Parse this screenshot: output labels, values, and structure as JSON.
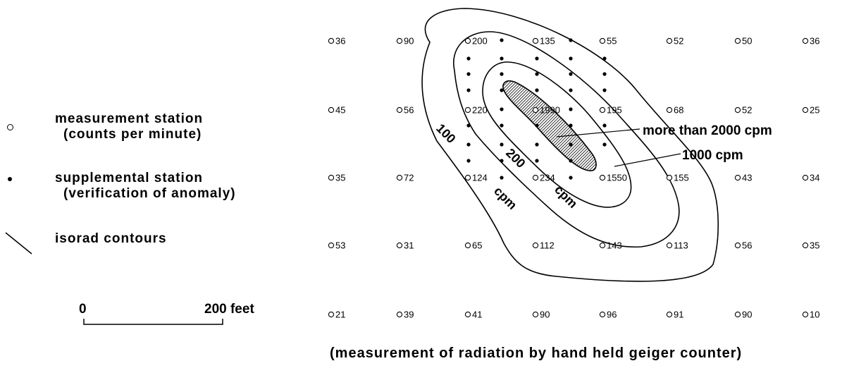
{
  "legend": {
    "measurement_station": "measurement station",
    "measurement_station_sub": "(counts per minute)",
    "supplemental_station": "supplemental station",
    "supplemental_station_sub": "(verification of anomaly)",
    "isorad_contours": "isorad contours"
  },
  "scale": {
    "zero": "0",
    "value": "200 feet"
  },
  "caption": "(measurement of radiation by hand held geiger counter)",
  "annotations": {
    "more_than_2000": "more than 2000 cpm",
    "c1000": "1000 cpm",
    "c100": "100",
    "c200": "200",
    "cpm": "cpm"
  },
  "measurements": [
    [
      "36",
      "90",
      "200",
      "135",
      "55",
      "52",
      "50",
      "36"
    ],
    [
      "45",
      "56",
      "220",
      "1990",
      "195",
      "68",
      "52",
      "25"
    ],
    [
      "35",
      "72",
      "124",
      "234",
      "1550",
      "155",
      "43",
      "34"
    ],
    [
      "53",
      "31",
      "65",
      "112",
      "143",
      "113",
      "56",
      "35"
    ],
    [
      "21",
      "39",
      "41",
      "90",
      "96",
      "91",
      "90",
      "10"
    ]
  ]
}
